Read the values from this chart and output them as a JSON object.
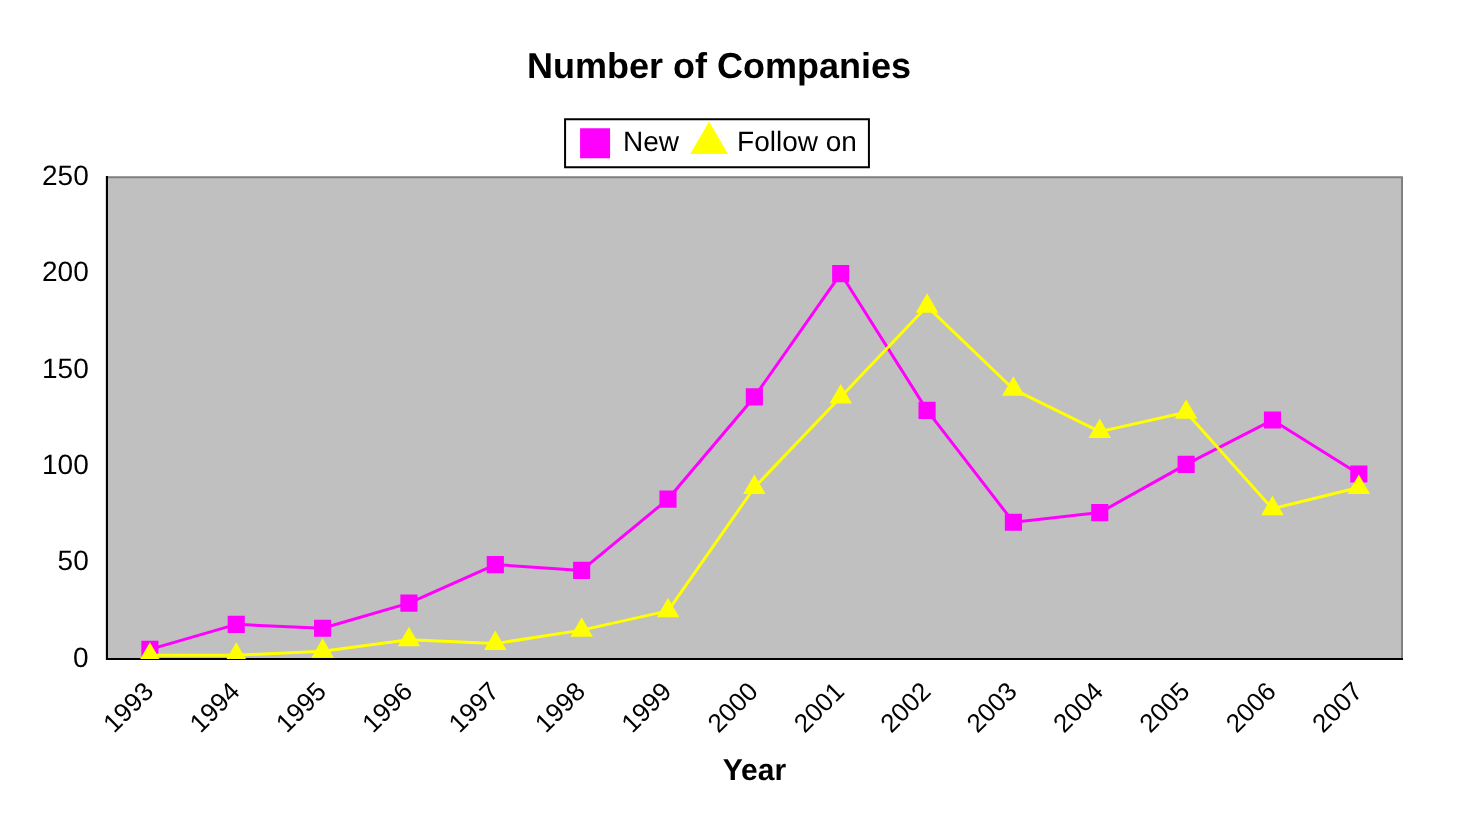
{
  "chart_data": {
    "type": "line",
    "title": "Number of Companies",
    "xlabel": "Year",
    "categories": [
      "1993",
      "1994",
      "1995",
      "1996",
      "1997",
      "1998",
      "1999",
      "2000",
      "2001",
      "2002",
      "2003",
      "2004",
      "2005",
      "2006",
      "2007"
    ],
    "series": [
      {
        "name": "New",
        "color": "#ff00ff",
        "marker": "square",
        "values": [
          5,
          18,
          16,
          29,
          49,
          46,
          83,
          136,
          200,
          129,
          71,
          76,
          101,
          124,
          96
        ]
      },
      {
        "name": "Follow on",
        "color": "#ffff00",
        "marker": "triangle",
        "values": [
          2,
          2,
          4,
          10,
          8,
          15,
          25,
          89,
          136,
          183,
          140,
          118,
          128,
          78,
          89
        ]
      }
    ],
    "ylim": [
      0,
      250
    ],
    "yticks": [
      0,
      50,
      100,
      150,
      200,
      250
    ],
    "grid": false,
    "legend": "top",
    "line_style": "solid"
  }
}
